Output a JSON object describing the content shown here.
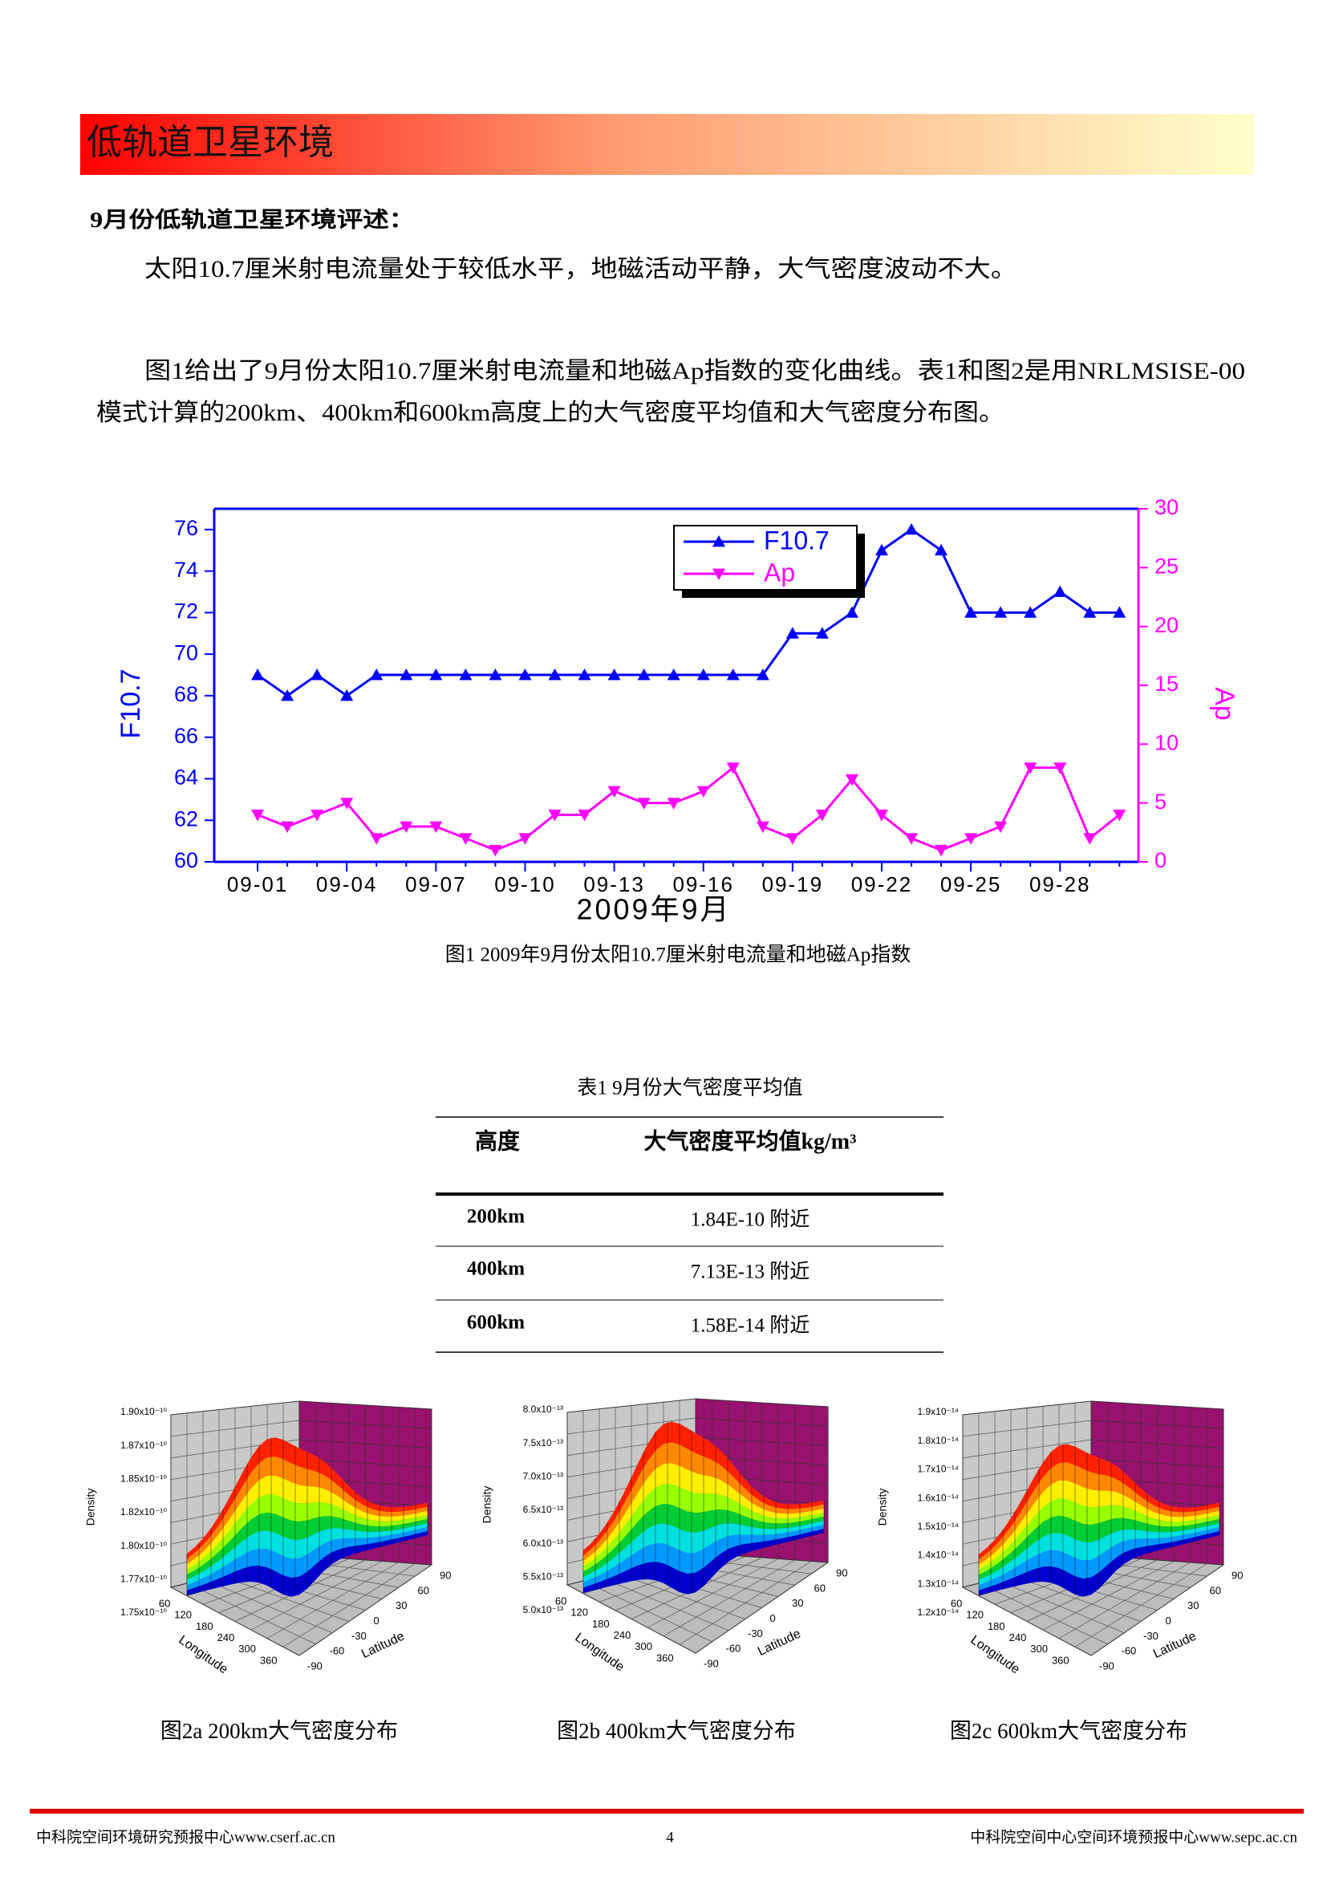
{
  "header": {
    "title": "低轨道卫星环境"
  },
  "section": {
    "heading": "9月份低轨道卫星环境评述：",
    "paragraphs": [
      [
        "太阳10.7厘米射电流量处于较低水平，地磁活动平静，大气密度波动不大。"
      ],
      [
        "图1给出了9月份太阳10.7厘米射电流量和地磁Ap指数的变化曲线。表1和图2是用NRLMSISE-00",
        "模式计算的200km、400km和600km高度上的大气密度平均值和大气密度分布图。"
      ]
    ]
  },
  "chart_data": {
    "type": "line",
    "caption": "图1 2009年9月份太阳10.7厘米射电流量和地磁Ap指数",
    "x_label": "2009年9月",
    "y_label": "F10.7",
    "y2_label": "Ap",
    "categories": [
      "09-01",
      null,
      null,
      "09-04",
      null,
      null,
      "09-07",
      null,
      null,
      "09-10",
      null,
      null,
      "09-13",
      null,
      null,
      "09-16",
      null,
      null,
      "09-19",
      null,
      null,
      "09-22",
      null,
      null,
      "09-25",
      null,
      null,
      "09-28",
      null,
      null
    ],
    "series": [
      {
        "name": "F10.7",
        "color": "#0000ff",
        "marker": "triangle-up",
        "values": [
          69,
          68,
          69,
          68,
          69,
          69,
          69,
          69,
          69,
          69,
          69,
          69,
          69,
          69,
          69,
          69,
          69,
          69,
          71,
          71,
          72,
          75,
          76,
          75,
          72,
          72,
          72,
          73,
          72,
          72
        ]
      },
      {
        "name": "Ap",
        "color": "#ff00ff",
        "marker": "triangle-down",
        "axis": "y2",
        "values": [
          4,
          3,
          4,
          5,
          2,
          3,
          3,
          2,
          1,
          2,
          4,
          4,
          6,
          5,
          5,
          6,
          8,
          3,
          2,
          4,
          7,
          4,
          2,
          1,
          2,
          3,
          8,
          8,
          2,
          4
        ]
      }
    ],
    "ylim": [
      60,
      77
    ],
    "yticks": [
      60,
      62,
      64,
      66,
      68,
      70,
      72,
      74,
      76
    ],
    "y2lim": [
      0,
      30
    ],
    "y2ticks": [
      0,
      5,
      10,
      15,
      20,
      25,
      30
    ],
    "legend": "top"
  },
  "table": {
    "caption": "表1 9月份大气密度平均值",
    "header": [
      "高度",
      "大气密度平均值kg/m³"
    ],
    "rows": [
      [
        "200km",
        "1.84E-10 附近"
      ],
      [
        "400km",
        "7.13E-13 附近"
      ],
      [
        "600km",
        "1.58E-14 附近"
      ]
    ]
  },
  "figures": [
    {
      "caption": "图2a 200km大气密度分布",
      "z_label": "Density",
      "x_label": "Longitude",
      "y_label": "Latitude",
      "z_ticks": [
        "1.90x10⁻¹⁰",
        "1.87x10⁻¹⁰",
        "1.85x10⁻¹⁰",
        "1.82x10⁻¹⁰",
        "1.80x10⁻¹⁰",
        "1.77x10⁻¹⁰",
        "1.75x10⁻¹⁰"
      ],
      "x_ticks": [
        "60",
        "120",
        "180",
        "240",
        "300",
        "360"
      ],
      "y_ticks": [
        "-90",
        "-60",
        "-30",
        "0",
        "30",
        "60",
        "90"
      ]
    },
    {
      "caption": "图2b 400km大气密度分布",
      "z_label": "Density",
      "x_label": "Longitude",
      "y_label": "Latitude",
      "z_ticks": [
        "8.0x10⁻¹³",
        "7.5x10⁻¹³",
        "7.0x10⁻¹³",
        "6.5x10⁻¹³",
        "6.0x10⁻¹³",
        "5.5x10⁻¹³",
        "5.0x10⁻¹³"
      ],
      "x_ticks": [
        "60",
        "120",
        "180",
        "240",
        "300",
        "360"
      ],
      "y_ticks": [
        "-90",
        "-60",
        "-30",
        "0",
        "30",
        "60",
        "90"
      ]
    },
    {
      "caption": "图2c 600km大气密度分布",
      "z_label": "Density",
      "x_label": "Longitude",
      "y_label": "Latitude",
      "z_ticks": [
        "1.9x10⁻¹⁴",
        "1.8x10⁻¹⁴",
        "1.7x10⁻¹⁴",
        "1.6x10⁻¹⁴",
        "1.5x10⁻¹⁴",
        "1.4x10⁻¹⁴",
        "1.3x10⁻¹⁴",
        "1.2x10⁻¹⁴"
      ],
      "x_ticks": [
        "60",
        "120",
        "180",
        "240",
        "300",
        "360"
      ],
      "y_ticks": [
        "-90",
        "-60",
        "-30",
        "0",
        "30",
        "60",
        "90"
      ]
    }
  ],
  "footer": {
    "left": "中科院空间环境研究预报中心www.cserf.ac.cn",
    "page": "4",
    "right": "中科院空间中心空间环境预报中心www.sepc.ac.cn"
  }
}
